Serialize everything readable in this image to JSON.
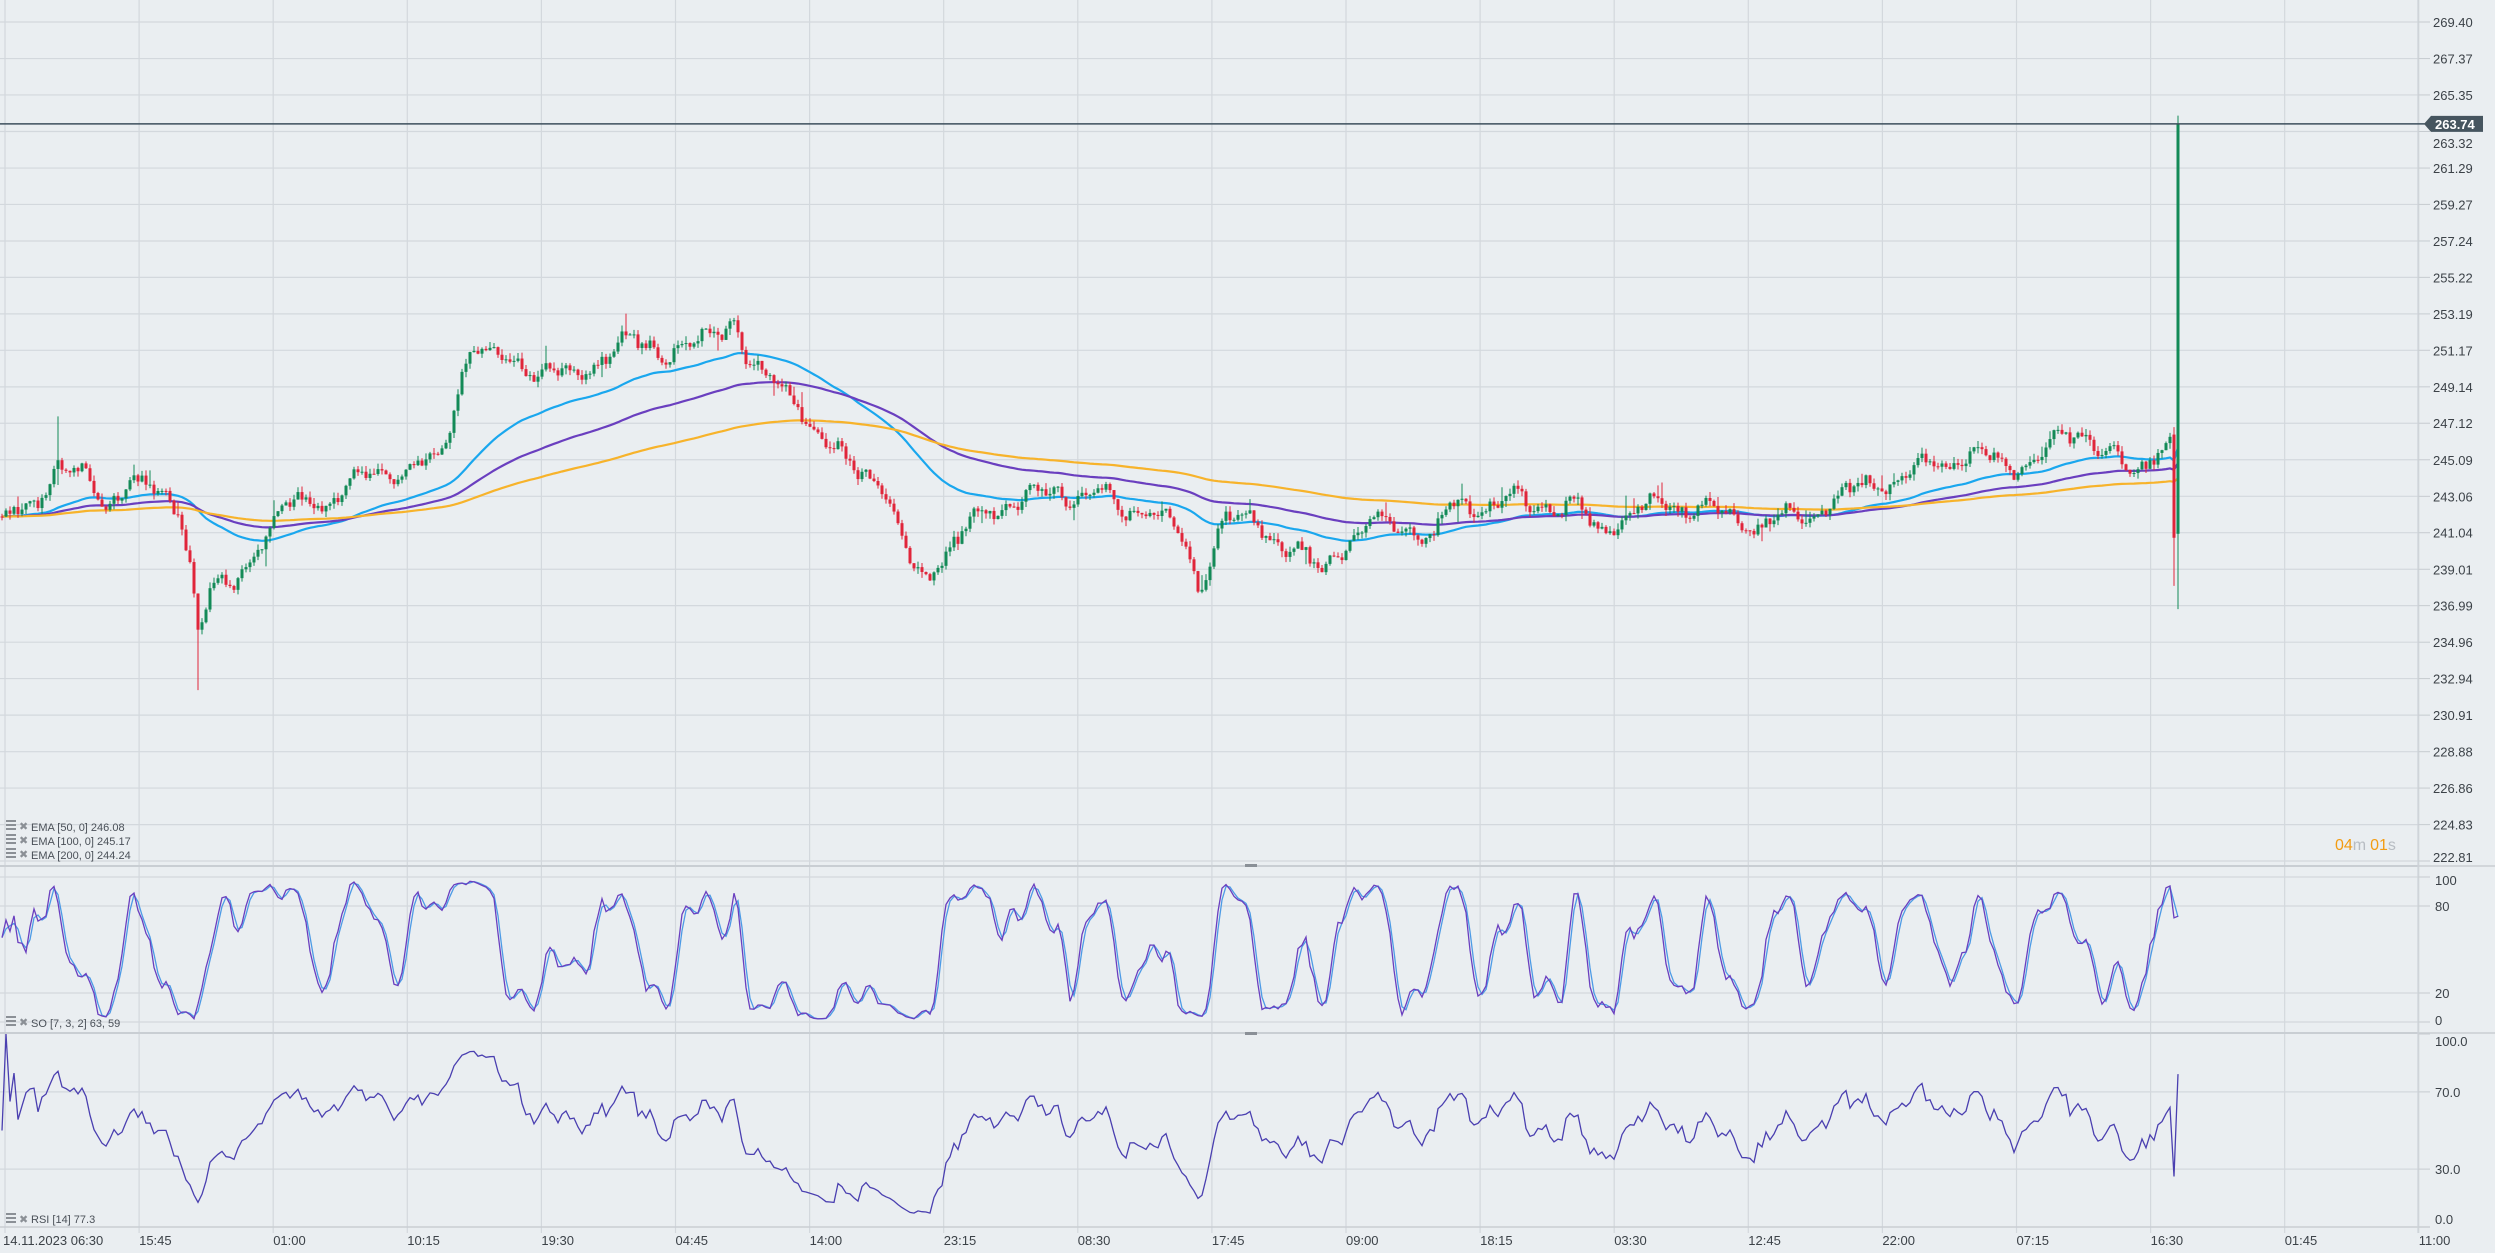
{
  "chart_data": {
    "type": "candlestick",
    "main": {
      "ylim": [
        222.81,
        269.4
      ],
      "y_ticks": [
        "269.40",
        "267.37",
        "265.35",
        "263.32",
        "261.29",
        "259.27",
        "257.24",
        "255.22",
        "253.19",
        "251.17",
        "249.14",
        "247.12",
        "245.09",
        "243.06",
        "241.04",
        "239.01",
        "236.99",
        "234.96",
        "232.94",
        "230.91",
        "228.88",
        "226.86",
        "224.83",
        "222.81"
      ],
      "candle_count": 545,
      "keypoints": [
        [
          0,
          241.94
        ],
        [
          8,
          242.38
        ],
        [
          14,
          245.03
        ],
        [
          20,
          244.15
        ],
        [
          26,
          242.38
        ],
        [
          32,
          244.15
        ],
        [
          40,
          242.82
        ],
        [
          44,
          242.38
        ],
        [
          47,
          239.73
        ],
        [
          49,
          235.76
        ],
        [
          52,
          237.97
        ],
        [
          58,
          237.97
        ],
        [
          64,
          240.62
        ],
        [
          70,
          242.38
        ],
        [
          80,
          242.82
        ],
        [
          92,
          244.15
        ],
        [
          103,
          244.59
        ],
        [
          109,
          245.03
        ],
        [
          113,
          248.12
        ],
        [
          117,
          251.65
        ],
        [
          121,
          250.77
        ],
        [
          131,
          250.33
        ],
        [
          143,
          249.44
        ],
        [
          147,
          250.33
        ],
        [
          155,
          251.65
        ],
        [
          167,
          251.21
        ],
        [
          175,
          251.65
        ],
        [
          183,
          252.98
        ],
        [
          187,
          250.33
        ],
        [
          191,
          249.44
        ],
        [
          199,
          248.56
        ],
        [
          203,
          246.35
        ],
        [
          211,
          245.03
        ],
        [
          219,
          244.15
        ],
        [
          223,
          241.5
        ],
        [
          227,
          239.29
        ],
        [
          231,
          238.85
        ],
        [
          239,
          240.62
        ],
        [
          247,
          242.38
        ],
        [
          255,
          242.82
        ],
        [
          263,
          243.26
        ],
        [
          275,
          243.26
        ],
        [
          279,
          242.38
        ],
        [
          287,
          242.38
        ],
        [
          295,
          240.62
        ],
        [
          299,
          237.97
        ],
        [
          303,
          240.62
        ],
        [
          306,
          241.94
        ],
        [
          314,
          241.5
        ],
        [
          322,
          240.17
        ],
        [
          330,
          238.85
        ],
        [
          334,
          240.17
        ],
        [
          342,
          241.5
        ],
        [
          350,
          241.5
        ],
        [
          358,
          240.62
        ],
        [
          362,
          242.38
        ],
        [
          370,
          242.56
        ],
        [
          378,
          242.82
        ],
        [
          394,
          242.38
        ],
        [
          398,
          241.06
        ],
        [
          402,
          241.5
        ],
        [
          410,
          242.38
        ],
        [
          422,
          242.56
        ],
        [
          430,
          242.2
        ],
        [
          438,
          241.5
        ],
        [
          450,
          241.94
        ],
        [
          462,
          243.26
        ],
        [
          474,
          244.15
        ],
        [
          482,
          244.59
        ],
        [
          494,
          245.47
        ],
        [
          502,
          244.59
        ],
        [
          513,
          245.91
        ],
        [
          521,
          246.8
        ],
        [
          529,
          245.03
        ],
        [
          533,
          243.7
        ],
        [
          537,
          245.47
        ],
        [
          542,
          246.2
        ]
      ],
      "spikes": [
        {
          "index": 49,
          "low": 232.3
        },
        {
          "index": 14,
          "high": 247.5
        }
      ],
      "final_candles": [
        {
          "o": 246.49,
          "h": 246.9,
          "l": 238.09,
          "c": 240.76
        },
        {
          "o": 240.98,
          "h": 264.2,
          "l": 236.8,
          "c": 263.74
        }
      ],
      "last_price": "263.74",
      "countdown": {
        "min": "04",
        "min_unit": "m",
        "sec": "01",
        "sec_unit": "s"
      },
      "indicators": [
        {
          "label": "EMA [50, 0] 246.08",
          "period": 50,
          "color": "#1aa7ee"
        },
        {
          "label": "EMA [100, 0] 245.17",
          "period": 100,
          "color": "#6a3fbf"
        },
        {
          "label": "EMA [200, 0] 244.24",
          "period": 200,
          "color": "#f7b32b"
        }
      ],
      "up_color": "#138a57",
      "down_color": "#e0253a"
    },
    "stochastic": {
      "label": "SO [7, 3, 2] 63, 59",
      "params": [
        7,
        3,
        2
      ],
      "ylim": [
        0,
        100
      ],
      "y_ticks": [
        "100",
        "80",
        "20",
        "0"
      ],
      "k_color": "#6a3fbf",
      "d_color": "#4d9be6"
    },
    "rsi": {
      "label": "RSI [14] 77.3",
      "period": 14,
      "ylim": [
        0,
        100
      ],
      "y_ticks": [
        "100.0",
        "70.0",
        "30.0",
        "0.0"
      ],
      "color": "#4a3fb0"
    },
    "x_ticks": [
      "14.11.2023  06:30",
      "15:45",
      "01:00",
      "10:15",
      "19:30",
      "04:45",
      "14:00",
      "23:15",
      "08:30",
      "17:45",
      "09:00",
      "18:15",
      "03:30",
      "12:45",
      "22:00",
      "07:15",
      "16:30",
      "01:45",
      "11:00"
    ]
  }
}
